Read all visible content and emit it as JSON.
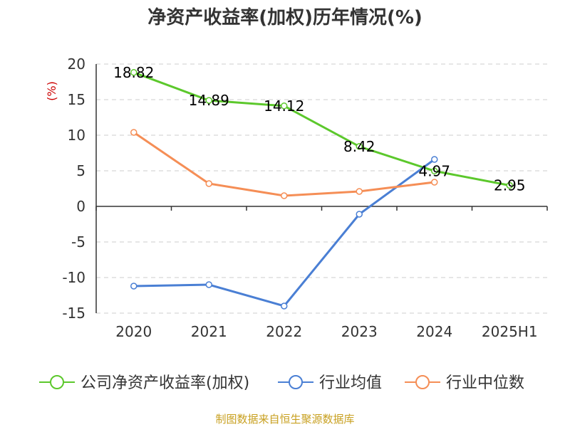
{
  "chart_data": {
    "type": "line",
    "title": "净资产收益率(加权)历年情况(%)",
    "ylabel": "(%)",
    "categories": [
      "2020",
      "2021",
      "2022",
      "2023",
      "2024",
      "2025H1"
    ],
    "yticks": [
      "20",
      "15",
      "10",
      "5",
      "0",
      "-5",
      "-10",
      "-15"
    ],
    "ylim": [
      -15,
      20
    ],
    "grid": true,
    "legend_position": "bottom",
    "series": [
      {
        "name": "公司净资产收益率(加权)",
        "color": "#5cc82c",
        "values": [
          18.82,
          14.89,
          14.12,
          8.42,
          4.97,
          2.95
        ],
        "labels": [
          "18.82",
          "14.89",
          "14.12",
          "8.42",
          "4.97",
          "2.95"
        ]
      },
      {
        "name": "行业均值",
        "color": "#4a7fd4",
        "values": [
          -11.2,
          -11.0,
          -14.0,
          -1.1,
          6.6,
          null
        ]
      },
      {
        "name": "行业中位数",
        "color": "#f58e56",
        "values": [
          10.4,
          3.2,
          1.5,
          2.1,
          3.4,
          null
        ]
      }
    ]
  },
  "source": "制图数据来自恒生聚源数据库"
}
